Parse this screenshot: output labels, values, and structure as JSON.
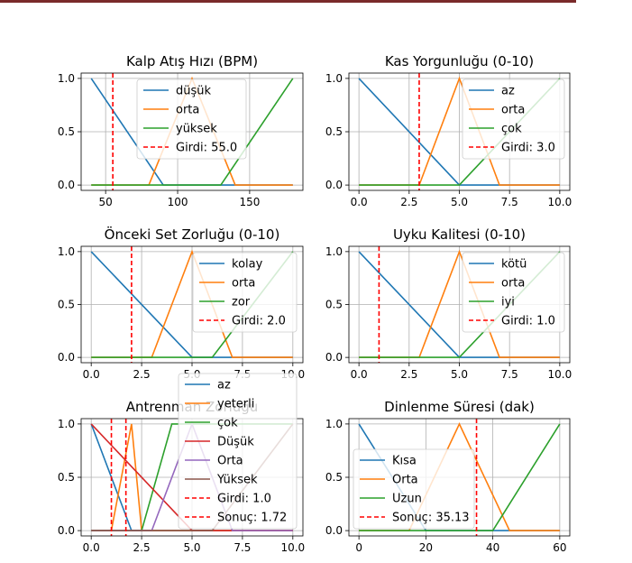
{
  "colors": {
    "blue": "#1f77b4",
    "orange": "#ff7f0e",
    "green": "#2ca02c",
    "red": "#d62728",
    "purple": "#9467bd",
    "brown": "#8c564b",
    "input_line": "#ff0000",
    "grid": "#b0b0b0",
    "topbar": "#7a2a2a"
  },
  "chart_data": [
    {
      "type": "line",
      "title": "Kalp Atış Hızı (BPM)",
      "xlim": [
        33,
        187
      ],
      "ylim": [
        -0.05,
        1.05
      ],
      "xticks": [
        50,
        100,
        150
      ],
      "xtick_labels": [
        "50",
        "100",
        "150"
      ],
      "yticks": [
        0,
        0.5,
        1
      ],
      "ytick_labels": [
        "0.0",
        "0.5",
        "1.0"
      ],
      "grid": true,
      "legend_position": "upper-center",
      "series": [
        {
          "name": "düşük",
          "color": "#1f77b4",
          "x": [
            40,
            90,
            180
          ],
          "y": [
            1,
            0,
            0
          ]
        },
        {
          "name": "orta",
          "color": "#ff7f0e",
          "x": [
            40,
            80,
            110,
            140,
            180
          ],
          "y": [
            0,
            0,
            1,
            0,
            0
          ]
        },
        {
          "name": "yüksek",
          "color": "#2ca02c",
          "x": [
            40,
            130,
            180
          ],
          "y": [
            0,
            0,
            1
          ]
        }
      ],
      "vlines": [
        {
          "name": "Girdi: 55.0",
          "x": 55,
          "color": "#ff0000"
        }
      ]
    },
    {
      "type": "line",
      "title": "Kas Yorgunluğu (0-10)",
      "xlim": [
        -0.5,
        10.5
      ],
      "ylim": [
        -0.05,
        1.05
      ],
      "xticks": [
        0,
        2.5,
        5,
        7.5,
        10
      ],
      "xtick_labels": [
        "0.0",
        "2.5",
        "5.0",
        "7.5",
        "10.0"
      ],
      "yticks": [
        0,
        0.5,
        1
      ],
      "ytick_labels": [
        "0.0",
        "0.5",
        "1.0"
      ],
      "grid": true,
      "legend_position": "upper-right",
      "series": [
        {
          "name": "az",
          "color": "#1f77b4",
          "x": [
            0,
            5,
            10
          ],
          "y": [
            1,
            0,
            0
          ]
        },
        {
          "name": "orta",
          "color": "#ff7f0e",
          "x": [
            0,
            3,
            5,
            7,
            10
          ],
          "y": [
            0,
            0,
            1,
            0,
            0
          ]
        },
        {
          "name": "çok",
          "color": "#2ca02c",
          "x": [
            0,
            5,
            10
          ],
          "y": [
            0,
            0,
            1
          ]
        }
      ],
      "vlines": [
        {
          "name": "Girdi: 3.0",
          "x": 3,
          "color": "#ff0000"
        }
      ]
    },
    {
      "type": "line",
      "title": "Önceki Set Zorluğu (0-10)",
      "xlim": [
        -0.5,
        10.5
      ],
      "ylim": [
        -0.05,
        1.05
      ],
      "xticks": [
        0,
        2.5,
        5,
        7.5,
        10
      ],
      "xtick_labels": [
        "0.0",
        "2.5",
        "5.0",
        "7.5",
        "10.0"
      ],
      "yticks": [
        0,
        0.5,
        1
      ],
      "ytick_labels": [
        "0.0",
        "0.5",
        "1.0"
      ],
      "grid": true,
      "legend_position": "upper-right",
      "series": [
        {
          "name": "kolay",
          "color": "#1f77b4",
          "x": [
            0,
            5,
            10
          ],
          "y": [
            1,
            0,
            0
          ]
        },
        {
          "name": "orta",
          "color": "#ff7f0e",
          "x": [
            0,
            3,
            5,
            7,
            10
          ],
          "y": [
            0,
            0,
            1,
            0,
            0
          ]
        },
        {
          "name": "zor",
          "color": "#2ca02c",
          "x": [
            0,
            6,
            10
          ],
          "y": [
            0,
            0,
            1
          ]
        }
      ],
      "vlines": [
        {
          "name": "Girdi: 2.0",
          "x": 2,
          "color": "#ff0000"
        }
      ]
    },
    {
      "type": "line",
      "title": "Uyku Kalitesi (0-10)",
      "xlim": [
        -0.5,
        10.5
      ],
      "ylim": [
        -0.05,
        1.05
      ],
      "xticks": [
        0,
        2.5,
        5,
        7.5,
        10
      ],
      "xtick_labels": [
        "0.0",
        "2.5",
        "5.0",
        "7.5",
        "10.0"
      ],
      "yticks": [
        0,
        0.5,
        1
      ],
      "ytick_labels": [
        "0.0",
        "0.5",
        "1.0"
      ],
      "grid": true,
      "legend_position": "upper-right",
      "series": [
        {
          "name": "kötü",
          "color": "#1f77b4",
          "x": [
            0,
            5,
            10
          ],
          "y": [
            1,
            0,
            0
          ]
        },
        {
          "name": "orta",
          "color": "#ff7f0e",
          "x": [
            0,
            3,
            5,
            7,
            10
          ],
          "y": [
            0,
            0,
            1,
            0,
            0
          ]
        },
        {
          "name": "iyi",
          "color": "#2ca02c",
          "x": [
            0,
            5,
            10
          ],
          "y": [
            0,
            0,
            1
          ]
        }
      ],
      "vlines": [
        {
          "name": "Girdi: 1.0",
          "x": 1,
          "color": "#ff0000"
        }
      ]
    },
    {
      "type": "line",
      "title": "Antrenman Zorluğu",
      "xlim": [
        -0.5,
        10.5
      ],
      "ylim": [
        -0.05,
        1.05
      ],
      "xticks": [
        0,
        2.5,
        5,
        7.5,
        10
      ],
      "xtick_labels": [
        "0.0",
        "2.5",
        "5.0",
        "7.5",
        "10.0"
      ],
      "yticks": [
        0,
        0.5,
        1
      ],
      "ytick_labels": [
        "0.0",
        "0.5",
        "1.0"
      ],
      "grid": true,
      "legend_position": "upper-right",
      "series": [
        {
          "name": "az",
          "color": "#1f77b4",
          "x": [
            0,
            2,
            10
          ],
          "y": [
            1,
            0,
            0
          ]
        },
        {
          "name": "yeterli",
          "color": "#ff7f0e",
          "x": [
            0,
            1,
            2,
            2.5,
            10
          ],
          "y": [
            0,
            0,
            1,
            0,
            0
          ]
        },
        {
          "name": "çok",
          "color": "#2ca02c",
          "x": [
            0,
            2.5,
            4,
            10
          ],
          "y": [
            0,
            0,
            1,
            1
          ]
        },
        {
          "name": "Düşük",
          "color": "#d62728",
          "x": [
            0,
            5,
            10
          ],
          "y": [
            1,
            0,
            0
          ]
        },
        {
          "name": "Orta",
          "color": "#9467bd",
          "x": [
            0,
            3,
            5,
            7,
            10
          ],
          "y": [
            0,
            0,
            1,
            0,
            0
          ]
        },
        {
          "name": "Yüksek",
          "color": "#8c564b",
          "x": [
            0,
            6,
            10
          ],
          "y": [
            0,
            0,
            1
          ]
        }
      ],
      "vlines": [
        {
          "name": "Girdi: 1.0",
          "x": 1,
          "color": "#ff0000"
        },
        {
          "name": "Sonuç: 1.72",
          "x": 1.72,
          "color": "#ff0000"
        }
      ]
    },
    {
      "type": "line",
      "title": "Dinlenme Süresi (dak)",
      "xlim": [
        -3,
        63
      ],
      "ylim": [
        -0.05,
        1.05
      ],
      "xticks": [
        0,
        20,
        40,
        60
      ],
      "xtick_labels": [
        "0",
        "20",
        "40",
        "60"
      ],
      "yticks": [
        0,
        0.5,
        1
      ],
      "ytick_labels": [
        "0.0",
        "0.5",
        "1.0"
      ],
      "grid": true,
      "legend_position": "lower-left",
      "series": [
        {
          "name": "Kısa",
          "color": "#1f77b4",
          "x": [
            0,
            20,
            60
          ],
          "y": [
            1,
            0,
            0
          ]
        },
        {
          "name": "Orta",
          "color": "#ff7f0e",
          "x": [
            0,
            15,
            30,
            45,
            60
          ],
          "y": [
            0,
            0,
            1,
            0,
            0
          ]
        },
        {
          "name": "Uzun",
          "color": "#2ca02c",
          "x": [
            0,
            40,
            60
          ],
          "y": [
            0,
            0,
            1
          ]
        }
      ],
      "vlines": [
        {
          "name": "Sonuç: 35.13",
          "x": 35.13,
          "color": "#ff0000"
        }
      ]
    }
  ]
}
